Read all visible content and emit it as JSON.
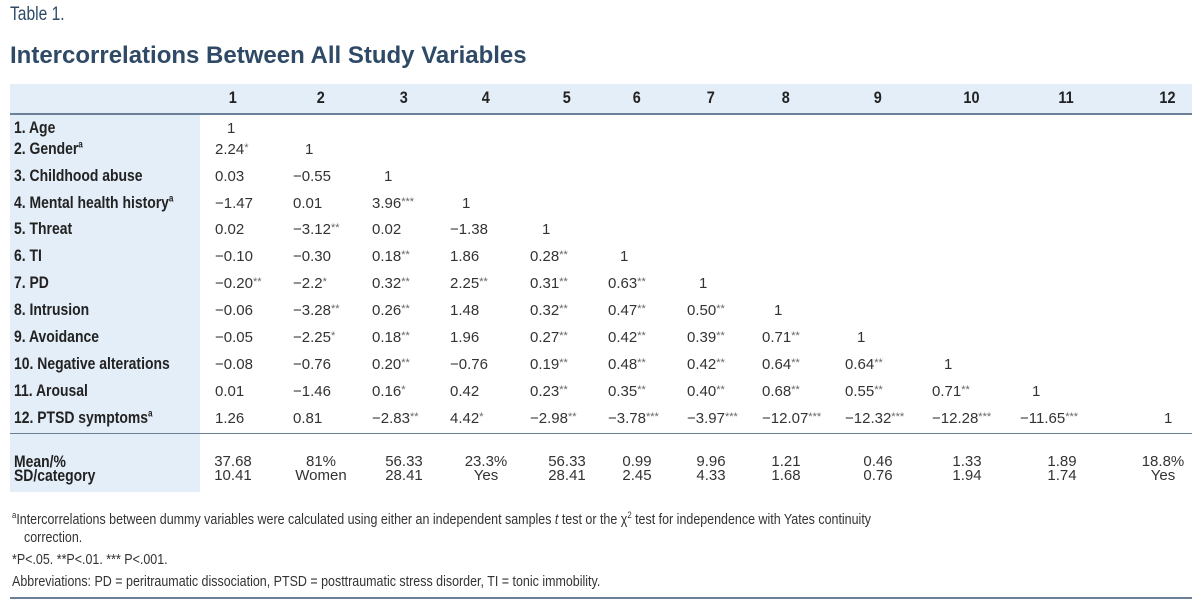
{
  "table_label": "Table 1.",
  "title": "Intercorrelations Between All Study Variables",
  "columns": [
    "1",
    "2",
    "3",
    "4",
    "5",
    "6",
    "7",
    "8",
    "9",
    "10",
    "11",
    "12"
  ],
  "rows": [
    {
      "label": "1. Age",
      "sup": "",
      "cells": [
        "1"
      ]
    },
    {
      "label": "2. Gender",
      "sup": "a",
      "cells": [
        "2.24*",
        "1"
      ]
    },
    {
      "label": "3. Childhood abuse",
      "sup": "",
      "cells": [
        "0.03",
        "−0.55",
        "1"
      ]
    },
    {
      "label": "4. Mental health history",
      "sup": "a",
      "cells": [
        "−1.47",
        "0.01",
        "3.96***",
        "1"
      ]
    },
    {
      "label": "5. Threat",
      "sup": "",
      "cells": [
        "0.02",
        "−3.12**",
        "0.02",
        "−1.38",
        "1"
      ]
    },
    {
      "label": "6. TI",
      "sup": "",
      "cells": [
        "−0.10",
        "−0.30",
        "0.18**",
        "1.86",
        "0.28**",
        "1"
      ]
    },
    {
      "label": "7. PD",
      "sup": "",
      "cells": [
        "−0.20**",
        "−2.2*",
        "0.32**",
        "2.25**",
        "0.31**",
        "0.63**",
        "1"
      ]
    },
    {
      "label": "8. Intrusion",
      "sup": "",
      "cells": [
        "−0.06",
        "−3.28**",
        "0.26**",
        "1.48",
        "0.32**",
        "0.47**",
        "0.50**",
        "1"
      ]
    },
    {
      "label": "9. Avoidance",
      "sup": "",
      "cells": [
        "−0.05",
        "−2.25*",
        "0.18**",
        "1.96",
        "0.27**",
        "0.42**",
        "0.39**",
        "0.71**",
        "1"
      ]
    },
    {
      "label": "10. Negative alterations",
      "sup": "",
      "cells": [
        "−0.08",
        "−0.76",
        "0.20**",
        "−0.76",
        "0.19**",
        "0.48**",
        "0.42**",
        "0.64**",
        "0.64**",
        "1"
      ]
    },
    {
      "label": "11. Arousal",
      "sup": "",
      "cells": [
        "0.01",
        "−1.46",
        "0.16*",
        "0.42",
        "0.23**",
        "0.35**",
        "0.40**",
        "0.68**",
        "0.55**",
        "0.71**",
        "1"
      ]
    },
    {
      "label": "12. PTSD symptoms",
      "sup": "a",
      "cells": [
        "1.26",
        "0.81",
        "−2.83**",
        "4.42*",
        "−2.98**",
        "−3.78***",
        "−3.97***",
        "−12.07***",
        "−12.32***",
        "−12.28***",
        "−11.65***",
        "1"
      ]
    }
  ],
  "summary": {
    "mean_label": "Mean/%",
    "sd_label": "SD/category",
    "mean": [
      "37.68",
      "81%",
      "56.33",
      "23.3%",
      "56.33",
      "0.99",
      "9.96",
      "1.21",
      "0.46",
      "1.33",
      "1.89",
      "18.8%"
    ],
    "sd": [
      "10.41",
      "Women",
      "28.41",
      "Yes",
      "28.41",
      "2.45",
      "4.33",
      "1.68",
      "0.76",
      "1.94",
      "1.74",
      "Yes"
    ]
  },
  "footnotes": {
    "a_sup": "a",
    "a_text_1": "Intercorrelations between dummy variables were calculated using either an independent samples ",
    "a_t": "t",
    "a_text_2": " test or the χ",
    "a_chi_sup": "2",
    "a_text_3": " test for independence with Yates continuity",
    "a_text_4": "correction.",
    "significance": "*P<.05.   **P<.01.   *** P<.001.",
    "abbreviations": "Abbreviations: PD = peritraumatic dissociation, PTSD = posttraumatic stress disorder, TI = tonic immobility."
  },
  "colors": {
    "title": "#2f4a66",
    "band": "#e4eef8",
    "rule": "#6b7f99"
  }
}
